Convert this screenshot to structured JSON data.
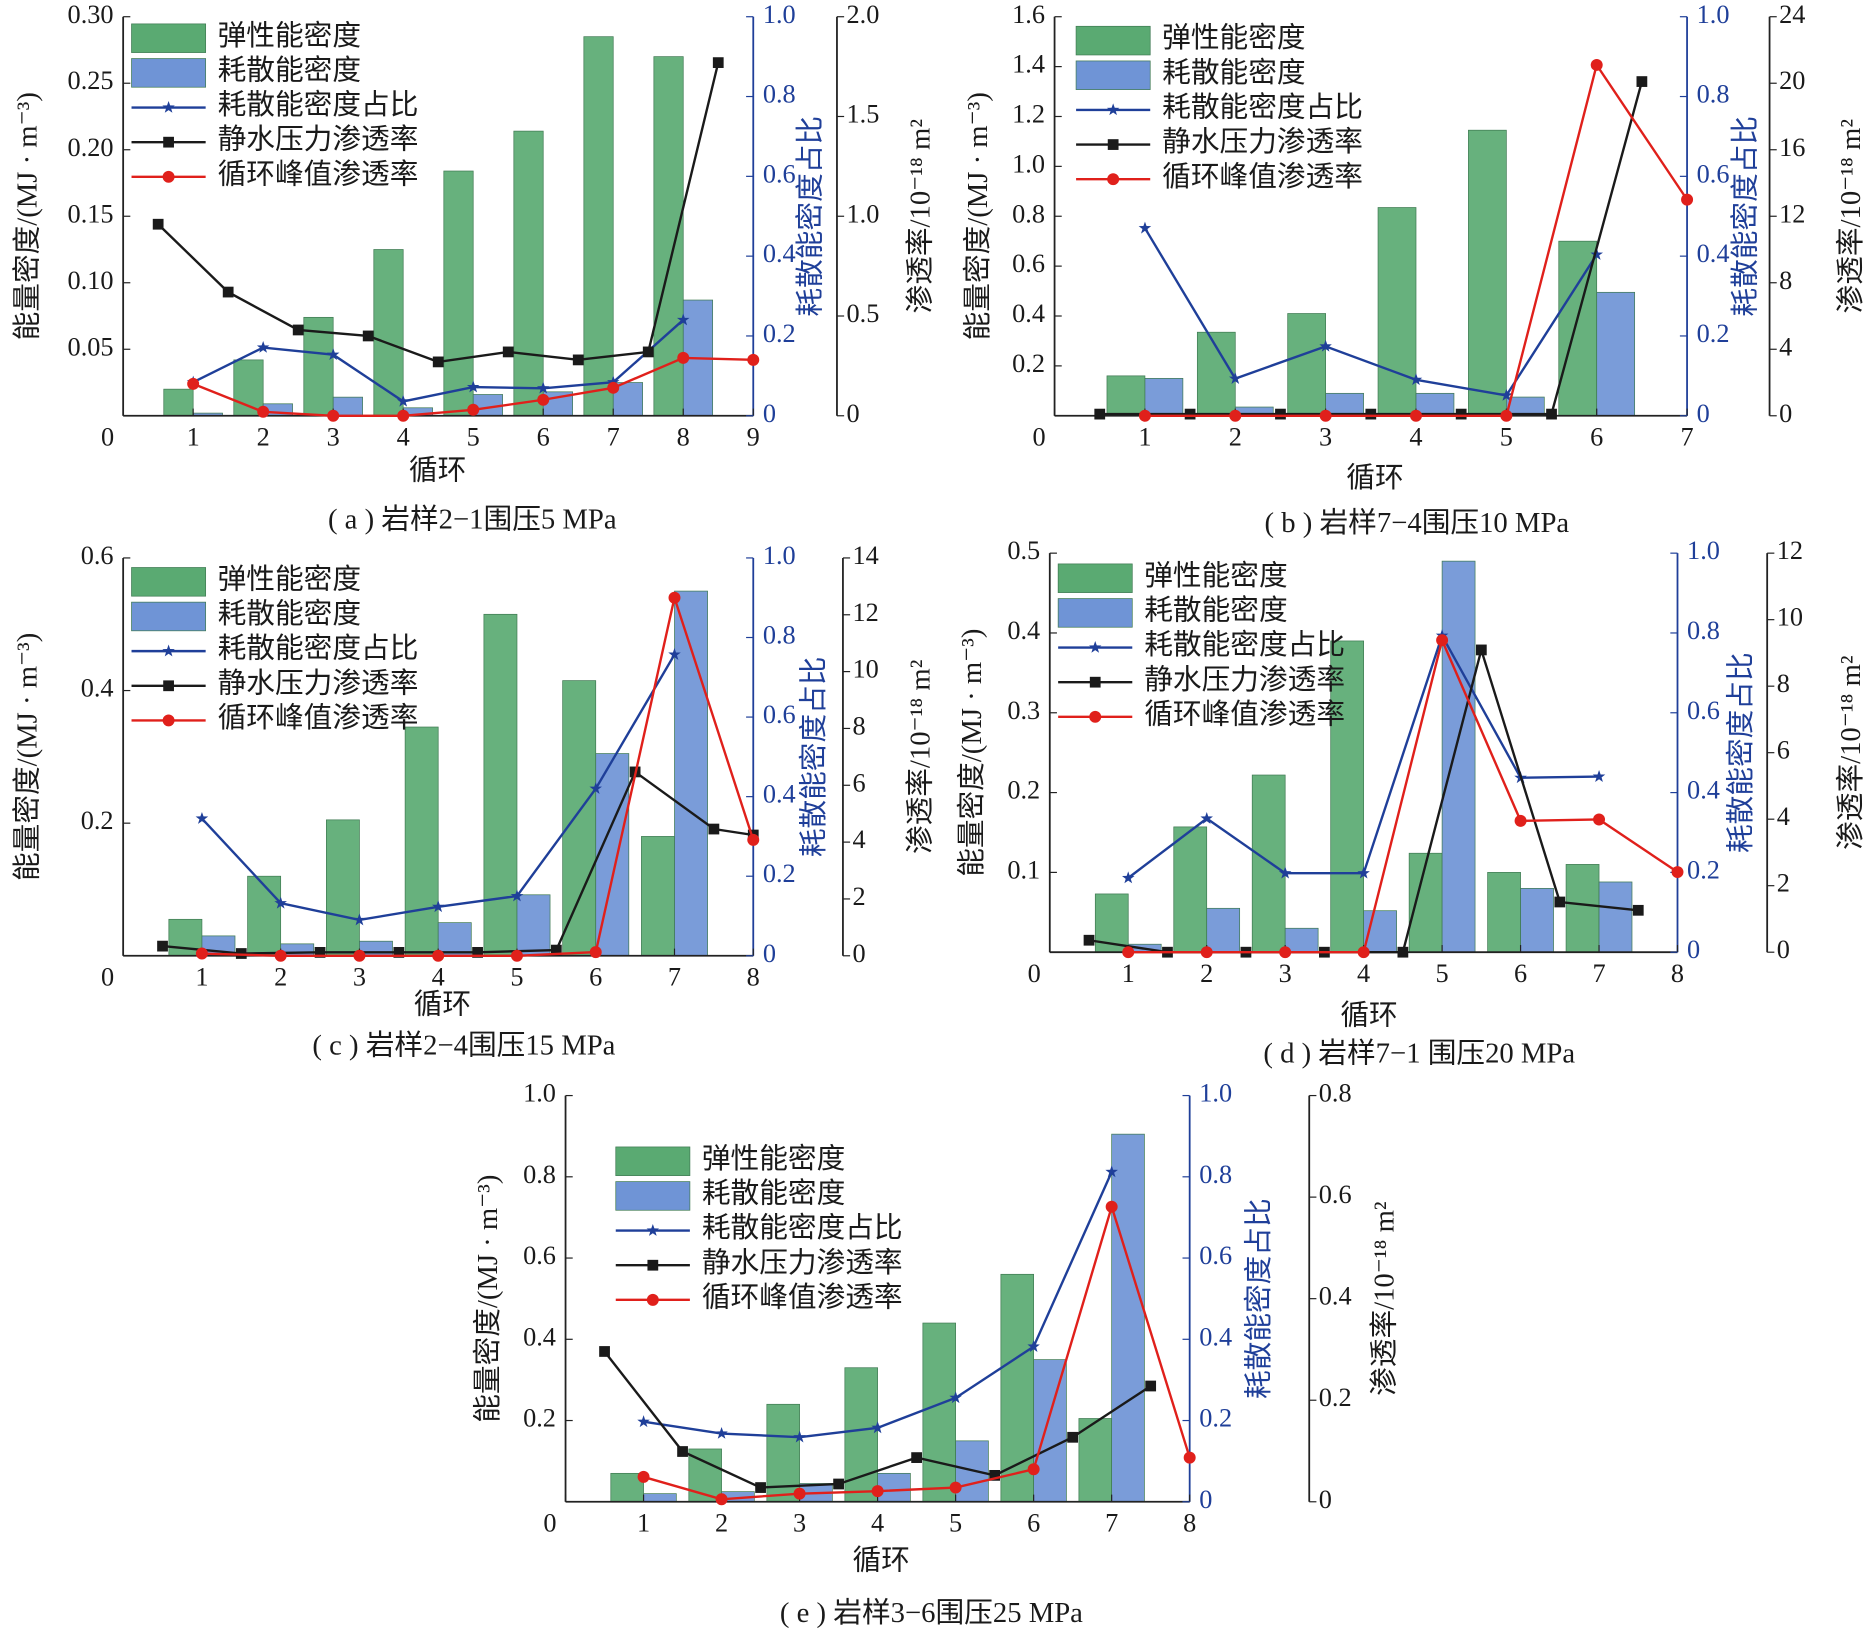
{
  "chart_data": [
    {
      "type": "bar_line",
      "title": "( a ) 岩样2−1围压5 MPa",
      "xlabel": "循环",
      "ylabel": "能量密度/(MJ · m⁻³)",
      "y2label": "耗散能密度占比",
      "y3label": "渗透率/10⁻¹⁸ m²",
      "xlim": [
        0,
        9
      ],
      "xticks": [
        0,
        1,
        2,
        3,
        4,
        5,
        6,
        7,
        8,
        9
      ],
      "ylim": [
        0,
        0.3
      ],
      "yticks": [
        0.05,
        {
          "value": 0.1,
          "label": "0.10"
        },
        0.15,
        {
          "value": 0.2,
          "label": "0.20"
        },
        0.25,
        {
          "value": 0.3,
          "label": "0.30"
        }
      ],
      "y2lim": [
        0,
        1
      ],
      "y2ticks": [
        0,
        0.2,
        0.4,
        0.6,
        0.8,
        {
          "value": 1,
          "label": "1.0"
        }
      ],
      "y3lim": [
        0,
        2
      ],
      "y3ticks": [
        0,
        0.5,
        {
          "value": 1,
          "label": "1.0"
        },
        1.5,
        {
          "value": 2,
          "label": "2.0"
        }
      ],
      "series": [
        {
          "name": "弹性能密度",
          "type": "bar",
          "color": "#5aaa72",
          "x": [
            1,
            2,
            3,
            4,
            5,
            6,
            7,
            8
          ],
          "values": [
            0.02,
            0.042,
            0.074,
            0.125,
            0.184,
            0.214,
            0.285,
            0.27
          ]
        },
        {
          "name": "耗散能密度",
          "type": "bar",
          "color": "#6f94d6",
          "x": [
            1,
            2,
            3,
            4,
            5,
            6,
            7,
            8
          ],
          "values": [
            0.002,
            0.009,
            0.014,
            0.006,
            0.016,
            0.018,
            0.025,
            0.087
          ]
        },
        {
          "name": "耗散能密度占比",
          "type": "line",
          "marker": "star",
          "axis": "y2",
          "color": "#1f3f99",
          "x": [
            1,
            2,
            3,
            4,
            5,
            6,
            7,
            8
          ],
          "values": [
            0.084,
            0.171,
            0.153,
            0.036,
            0.072,
            0.069,
            0.084,
            0.24
          ]
        },
        {
          "name": "静水压力渗透率",
          "type": "line",
          "marker": "square",
          "axis": "y3",
          "color": "#1a1a1a",
          "x": [
            0.5,
            1.5,
            2.5,
            3.5,
            4.5,
            5.5,
            6.5,
            7.5,
            8.5
          ],
          "values": [
            0.96,
            0.62,
            0.43,
            0.4,
            0.27,
            0.32,
            0.28,
            0.32,
            1.77
          ]
        },
        {
          "name": "循环峰值渗透率",
          "type": "line",
          "marker": "circle",
          "axis": "y3",
          "color": "#e0201b",
          "x": [
            1,
            2,
            3,
            4,
            5,
            6,
            7,
            8,
            9
          ],
          "values": [
            0.16,
            0.02,
            0,
            0,
            0.03,
            0.08,
            0.14,
            0.29,
            0.28
          ]
        }
      ]
    },
    {
      "type": "bar_line",
      "title": "( b ) 岩样7−4围压10 MPa",
      "xlabel": "循环",
      "ylabel": "能量密度/(MJ · m⁻³)",
      "y2label": "耗散能密度占比",
      "y3label": "渗透率/10⁻¹⁸ m²",
      "xlim": [
        0,
        7
      ],
      "xticks": [
        0,
        1,
        2,
        3,
        4,
        5,
        6,
        7
      ],
      "ylim": [
        0,
        1.6
      ],
      "yticks": [
        0.2,
        0.4,
        0.6,
        0.8,
        {
          "value": 1,
          "label": "1.0"
        },
        1.2,
        1.4,
        1.6
      ],
      "y2lim": [
        0,
        1
      ],
      "y2ticks": [
        0,
        0.2,
        0.4,
        0.6,
        0.8,
        {
          "value": 1,
          "label": "1.0"
        }
      ],
      "y3lim": [
        0,
        24
      ],
      "y3ticks": [
        0,
        4,
        8,
        12,
        16,
        20,
        24
      ],
      "series": [
        {
          "name": "弹性能密度",
          "type": "bar",
          "color": "#5aaa72",
          "x": [
            1,
            2,
            3,
            4,
            5,
            6
          ],
          "values": [
            0.16,
            0.335,
            0.41,
            0.835,
            1.145,
            0.7
          ]
        },
        {
          "name": "耗散能密度",
          "type": "bar",
          "color": "#6f94d6",
          "x": [
            1,
            2,
            3,
            4,
            5,
            6
          ],
          "values": [
            0.15,
            0.035,
            0.09,
            0.09,
            0.075,
            0.495
          ]
        },
        {
          "name": "耗散能密度占比",
          "type": "line",
          "marker": "star",
          "axis": "y2",
          "color": "#1f3f99",
          "x": [
            1,
            2,
            3,
            4,
            5,
            6
          ],
          "values": [
            0.47,
            0.093,
            0.174,
            0.09,
            0.051,
            0.404
          ]
        },
        {
          "name": "静水压力渗透率",
          "type": "line",
          "marker": "square",
          "axis": "y3",
          "color": "#1a1a1a",
          "x": [
            0.5,
            1.5,
            2.5,
            3.5,
            4.5,
            5.5,
            6.5
          ],
          "values": [
            0.1,
            0.1,
            0.1,
            0.1,
            0.1,
            0.1,
            20.1
          ]
        },
        {
          "name": "循环峰值渗透率",
          "type": "line",
          "marker": "circle",
          "axis": "y3",
          "color": "#e0201b",
          "x": [
            1,
            2,
            3,
            4,
            5,
            6,
            7
          ],
          "values": [
            0,
            0,
            0,
            0,
            0,
            21.1,
            13
          ]
        }
      ]
    },
    {
      "type": "bar_line",
      "title": "( c ) 岩样2−4围压15 MPa",
      "xlabel": "循环",
      "ylabel": "能量密度/(MJ · m⁻³)",
      "y2label": "耗散能密度占比",
      "y3label": "渗透率/10⁻¹⁸ m²",
      "xlim": [
        0,
        8
      ],
      "xticks": [
        0,
        1,
        2,
        3,
        4,
        5,
        6,
        7,
        8
      ],
      "ylim": [
        0,
        0.6
      ],
      "yticks": [
        0.2,
        0.4,
        0.6
      ],
      "y2lim": [
        0,
        1
      ],
      "y2ticks": [
        0,
        0.2,
        0.4,
        0.6,
        0.8,
        {
          "value": 1,
          "label": "1.0"
        }
      ],
      "y3lim": [
        0,
        14
      ],
      "y3ticks": [
        0,
        2,
        4,
        6,
        8,
        10,
        12,
        14
      ],
      "series": [
        {
          "name": "弹性能密度",
          "type": "bar",
          "color": "#5aaa72",
          "x": [
            1,
            2,
            3,
            4,
            5,
            6,
            7
          ],
          "values": [
            0.055,
            0.12,
            0.205,
            0.345,
            0.515,
            0.415,
            0.18
          ]
        },
        {
          "name": "耗散能密度",
          "type": "bar",
          "color": "#6f94d6",
          "x": [
            1,
            2,
            3,
            4,
            5,
            6,
            7
          ],
          "values": [
            0.03,
            0.018,
            0.022,
            0.05,
            0.092,
            0.305,
            0.55
          ]
        },
        {
          "name": "耗散能密度占比",
          "type": "line",
          "marker": "star",
          "axis": "y2",
          "color": "#1f3f99",
          "x": [
            1,
            2,
            3,
            4,
            5,
            6,
            7
          ],
          "values": [
            0.345,
            0.132,
            0.09,
            0.123,
            0.15,
            0.42,
            0.757
          ]
        },
        {
          "name": "静水压力渗透率",
          "type": "line",
          "marker": "square",
          "axis": "y3",
          "color": "#1a1a1a",
          "x": [
            0.5,
            1.5,
            2.5,
            3.5,
            4.5,
            5.5,
            6.5,
            7.5,
            8
          ],
          "values": [
            0.34,
            0.08,
            0.12,
            0.12,
            0.12,
            0.2,
            6.47,
            4.46,
            4.25
          ]
        },
        {
          "name": "循环峰值渗透率",
          "type": "line",
          "marker": "circle",
          "axis": "y3",
          "color": "#e0201b",
          "x": [
            1,
            2,
            3,
            4,
            5,
            6,
            7,
            8
          ],
          "values": [
            0.08,
            0,
            0,
            0,
            0,
            0.13,
            12.6,
            4.08
          ]
        }
      ]
    },
    {
      "type": "bar_line",
      "title": "( d ) 岩样7−1 围压20 MPa",
      "xlabel": "循环",
      "ylabel": "能量密度/(MJ · m⁻³)",
      "y2label": "耗散能密度占比",
      "y3label": "渗透率/10⁻¹⁸ m²",
      "xlim": [
        0,
        8
      ],
      "xticks": [
        0,
        1,
        2,
        3,
        4,
        5,
        6,
        7,
        8
      ],
      "ylim": [
        0,
        0.5
      ],
      "yticks": [
        0.1,
        0.2,
        0.3,
        0.4,
        0.5
      ],
      "y2lim": [
        0,
        1
      ],
      "y2ticks": [
        0,
        0.2,
        0.4,
        0.6,
        0.8,
        {
          "value": 1,
          "label": "1.0"
        }
      ],
      "y3lim": [
        0,
        12
      ],
      "y3ticks": [
        0,
        2,
        4,
        6,
        8,
        10,
        12
      ],
      "series": [
        {
          "name": "弹性能密度",
          "type": "bar",
          "color": "#5aaa72",
          "x": [
            1,
            2,
            3,
            4,
            5,
            6,
            7
          ],
          "values": [
            0.073,
            0.157,
            0.222,
            0.39,
            0.124,
            0.1,
            0.11
          ]
        },
        {
          "name": "耗散能密度",
          "type": "bar",
          "color": "#6f94d6",
          "x": [
            1,
            2,
            3,
            4,
            5,
            6,
            7
          ],
          "values": [
            0.01,
            0.055,
            0.03,
            0.052,
            0.49,
            0.08,
            0.088
          ]
        },
        {
          "name": "耗散能密度占比",
          "type": "line",
          "marker": "star",
          "axis": "y2",
          "color": "#1f3f99",
          "x": [
            1,
            2,
            3,
            4,
            5,
            6,
            7
          ],
          "values": [
            0.186,
            0.335,
            0.198,
            0.198,
            0.793,
            0.437,
            0.44
          ]
        },
        {
          "name": "静水压力渗透率",
          "type": "line",
          "marker": "square",
          "axis": "y3",
          "color": "#1a1a1a",
          "x": [
            0.5,
            1.5,
            2.5,
            3.5,
            4.5,
            5.5,
            6.5,
            7.5
          ],
          "values": [
            0.36,
            0,
            0,
            0,
            0,
            9.09,
            1.51,
            1.26
          ]
        },
        {
          "name": "循环峰值渗透率",
          "type": "line",
          "marker": "circle",
          "axis": "y3",
          "color": "#e0201b",
          "x": [
            1,
            2,
            3,
            4,
            5,
            6,
            7,
            8
          ],
          "values": [
            0,
            0,
            0,
            0,
            9.38,
            3.95,
            3.99,
            2.41
          ]
        }
      ]
    },
    {
      "type": "bar_line",
      "title": "( e ) 岩样3−6围压25 MPa",
      "xlabel": "循环",
      "ylabel": "能量密度/(MJ · m⁻³)",
      "y2label": "耗散能密度占比",
      "y3label": "渗透率/10⁻¹⁸ m²",
      "xlim": [
        0,
        8
      ],
      "xticks": [
        0,
        1,
        2,
        3,
        4,
        5,
        6,
        7,
        8
      ],
      "ylim": [
        0,
        1
      ],
      "yticks": [
        0.2,
        0.4,
        0.6,
        0.8,
        {
          "value": 1,
          "label": "1.0"
        }
      ],
      "y2lim": [
        0,
        1
      ],
      "y2ticks": [
        0,
        0.2,
        0.4,
        0.6,
        0.8,
        {
          "value": 1,
          "label": "1.0"
        }
      ],
      "y3lim": [
        0,
        0.8
      ],
      "y3ticks": [
        0,
        0.2,
        0.4,
        0.6,
        0.8
      ],
      "series": [
        {
          "name": "弹性能密度",
          "type": "bar",
          "color": "#5aaa72",
          "x": [
            1,
            2,
            3,
            4,
            5,
            6,
            7
          ],
          "values": [
            0.07,
            0.13,
            0.24,
            0.33,
            0.44,
            0.56,
            0.205
          ]
        },
        {
          "name": "耗散能密度",
          "type": "bar",
          "color": "#6f94d6",
          "x": [
            1,
            2,
            3,
            4,
            5,
            6,
            7
          ],
          "values": [
            0.02,
            0.025,
            0.045,
            0.07,
            0.15,
            0.35,
            0.905
          ]
        },
        {
          "name": "耗散能密度占比",
          "type": "line",
          "marker": "star",
          "axis": "y2",
          "color": "#1f3f99",
          "x": [
            1,
            2,
            3,
            4,
            5,
            6,
            7
          ],
          "values": [
            0.197,
            0.168,
            0.159,
            0.182,
            0.256,
            0.382,
            0.812
          ]
        },
        {
          "name": "静水压力渗透率",
          "type": "line",
          "marker": "square",
          "axis": "y3",
          "color": "#1a1a1a",
          "x": [
            0.5,
            1.5,
            2.5,
            3.5,
            4.5,
            5.5,
            6.5,
            7.5
          ],
          "values": [
            0.296,
            0.099,
            0.028,
            0.035,
            0.087,
            0.052,
            0.127,
            0.228
          ]
        },
        {
          "name": "循环峰值渗透率",
          "type": "line",
          "marker": "circle",
          "axis": "y3",
          "color": "#e0201b",
          "x": [
            1,
            2,
            3,
            4,
            5,
            6,
            7,
            8
          ],
          "values": [
            0.049,
            0.005,
            0.016,
            0.021,
            0.028,
            0.064,
            0.581,
            0.087
          ]
        }
      ]
    }
  ]
}
